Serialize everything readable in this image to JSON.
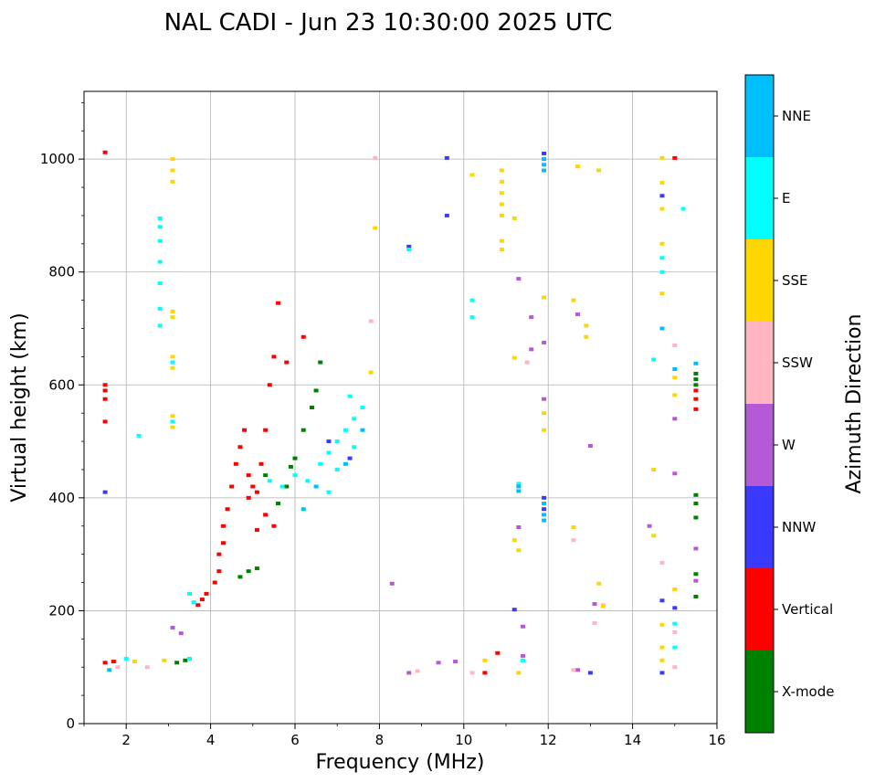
{
  "chart_data": {
    "type": "scatter",
    "title": "NAL CADI - Jun 23 10:30:00 2025 UTC",
    "xlabel": "Frequency (MHz)",
    "ylabel": "Virtual height (km)",
    "xlim": [
      1.0,
      16.0
    ],
    "ylim": [
      0,
      1120
    ],
    "x_ticks": [
      2,
      4,
      6,
      8,
      10,
      12,
      14,
      16
    ],
    "y_ticks": [
      0,
      200,
      400,
      600,
      800,
      1000
    ],
    "grid": true,
    "colorbar": {
      "title": "Azimuth Direction",
      "position": "right",
      "categories": [
        {
          "label": "X-mode",
          "color": "#008000"
        },
        {
          "label": "Vertical",
          "color": "#ff0000"
        },
        {
          "label": "NNW",
          "color": "#3a3aff"
        },
        {
          "label": "W",
          "color": "#b45ad6"
        },
        {
          "label": "SSW",
          "color": "#ffb6c1"
        },
        {
          "label": "SSE",
          "color": "#ffd700"
        },
        {
          "label": "E",
          "color": "#00ffff"
        },
        {
          "label": "NNE",
          "color": "#00bfff"
        }
      ]
    },
    "series": [
      {
        "name": "X-mode",
        "color": "#008000",
        "points": [
          [
            4.7,
            260
          ],
          [
            4.9,
            270
          ],
          [
            5.1,
            275
          ],
          [
            5.6,
            390
          ],
          [
            5.8,
            420
          ],
          [
            6.0,
            470
          ],
          [
            6.2,
            520
          ],
          [
            6.4,
            560
          ],
          [
            6.5,
            590
          ],
          [
            6.6,
            640
          ],
          [
            15.5,
            620
          ],
          [
            15.5,
            610
          ],
          [
            15.5,
            600
          ],
          [
            15.5,
            405
          ],
          [
            15.5,
            390
          ],
          [
            15.5,
            365
          ],
          [
            15.5,
            265
          ],
          [
            15.5,
            225
          ],
          [
            3.2,
            108
          ],
          [
            3.4,
            112
          ],
          [
            5.3,
            440
          ],
          [
            5.9,
            455
          ]
        ]
      },
      {
        "name": "Vertical",
        "color": "#ff0000",
        "points": [
          [
            1.5,
            1012
          ],
          [
            1.5,
            600
          ],
          [
            1.5,
            590
          ],
          [
            1.5,
            575
          ],
          [
            1.5,
            535
          ],
          [
            3.7,
            210
          ],
          [
            3.8,
            220
          ],
          [
            3.9,
            230
          ],
          [
            4.1,
            250
          ],
          [
            4.2,
            270
          ],
          [
            4.2,
            300
          ],
          [
            4.3,
            320
          ],
          [
            4.3,
            350
          ],
          [
            4.4,
            380
          ],
          [
            4.5,
            420
          ],
          [
            4.6,
            460
          ],
          [
            4.7,
            490
          ],
          [
            4.8,
            520
          ],
          [
            4.9,
            440
          ],
          [
            5.0,
            420
          ],
          [
            5.1,
            410
          ],
          [
            5.2,
            460
          ],
          [
            5.3,
            520
          ],
          [
            5.4,
            600
          ],
          [
            5.5,
            650
          ],
          [
            5.6,
            745
          ],
          [
            5.8,
            640
          ],
          [
            6.2,
            685
          ],
          [
            5.1,
            343
          ],
          [
            5.5,
            350
          ],
          [
            15.0,
            1002
          ],
          [
            15.5,
            590
          ],
          [
            15.5,
            575
          ],
          [
            15.5,
            557
          ],
          [
            1.5,
            108
          ],
          [
            1.7,
            110
          ],
          [
            10.5,
            90
          ],
          [
            10.8,
            125
          ],
          [
            5.3,
            370
          ],
          [
            4.9,
            400
          ]
        ]
      },
      {
        "name": "NNW",
        "color": "#3a3aff",
        "points": [
          [
            1.5,
            410
          ],
          [
            8.7,
            845
          ],
          [
            9.6,
            1002
          ],
          [
            9.6,
            900
          ],
          [
            11.9,
            1010
          ],
          [
            11.9,
            400
          ],
          [
            11.9,
            380
          ],
          [
            14.7,
            935
          ],
          [
            14.7,
            218
          ],
          [
            14.7,
            90
          ],
          [
            13.0,
            90
          ],
          [
            15.0,
            205
          ],
          [
            11.2,
            202
          ],
          [
            6.8,
            500
          ],
          [
            7.3,
            470
          ]
        ]
      },
      {
        "name": "W",
        "color": "#b45ad6",
        "points": [
          [
            8.3,
            248
          ],
          [
            8.7,
            90
          ],
          [
            9.4,
            108
          ],
          [
            9.8,
            110
          ],
          [
            11.4,
            120
          ],
          [
            11.4,
            172
          ],
          [
            11.3,
            348
          ],
          [
            11.6,
            720
          ],
          [
            11.6,
            663
          ],
          [
            11.3,
            788
          ],
          [
            11.9,
            675
          ],
          [
            11.9,
            575
          ],
          [
            12.7,
            725
          ],
          [
            13.0,
            492
          ],
          [
            13.1,
            212
          ],
          [
            14.4,
            350
          ],
          [
            15.0,
            443
          ],
          [
            15.0,
            540
          ],
          [
            15.5,
            310
          ],
          [
            15.5,
            253
          ],
          [
            12.7,
            95
          ],
          [
            3.1,
            170
          ],
          [
            3.3,
            160
          ]
        ]
      },
      {
        "name": "SSW",
        "color": "#ffb6c1",
        "points": [
          [
            7.9,
            1002
          ],
          [
            7.8,
            713
          ],
          [
            8.9,
            93
          ],
          [
            10.2,
            90
          ],
          [
            12.6,
            95
          ],
          [
            12.6,
            325
          ],
          [
            13.1,
            178
          ],
          [
            13.3,
            210
          ],
          [
            14.7,
            285
          ],
          [
            15.0,
            670
          ],
          [
            15.0,
            162
          ],
          [
            15.0,
            100
          ],
          [
            11.5,
            640
          ],
          [
            1.8,
            100
          ],
          [
            2.5,
            100
          ]
        ]
      },
      {
        "name": "SSE",
        "color": "#ffd700",
        "points": [
          [
            3.1,
            1000
          ],
          [
            3.1,
            980
          ],
          [
            3.1,
            960
          ],
          [
            3.1,
            730
          ],
          [
            3.1,
            720
          ],
          [
            3.1,
            650
          ],
          [
            3.1,
            630
          ],
          [
            3.1,
            545
          ],
          [
            3.1,
            525
          ],
          [
            7.9,
            878
          ],
          [
            7.8,
            622
          ],
          [
            10.2,
            972
          ],
          [
            10.9,
            980
          ],
          [
            10.9,
            960
          ],
          [
            10.9,
            940
          ],
          [
            10.9,
            920
          ],
          [
            10.9,
            900
          ],
          [
            10.9,
            855
          ],
          [
            10.9,
            840
          ],
          [
            11.2,
            895
          ],
          [
            11.2,
            648
          ],
          [
            11.2,
            325
          ],
          [
            11.3,
            307
          ],
          [
            11.9,
            755
          ],
          [
            11.9,
            550
          ],
          [
            11.9,
            520
          ],
          [
            12.7,
            987
          ],
          [
            12.6,
            750
          ],
          [
            12.9,
            705
          ],
          [
            12.9,
            685
          ],
          [
            12.6,
            348
          ],
          [
            13.2,
            980
          ],
          [
            13.2,
            248
          ],
          [
            13.3,
            208
          ],
          [
            14.5,
            450
          ],
          [
            14.5,
            333
          ],
          [
            14.7,
            1002
          ],
          [
            14.7,
            958
          ],
          [
            14.7,
            912
          ],
          [
            14.7,
            850
          ],
          [
            14.7,
            762
          ],
          [
            14.7,
            175
          ],
          [
            14.7,
            135
          ],
          [
            14.7,
            112
          ],
          [
            15.0,
            613
          ],
          [
            15.0,
            582
          ],
          [
            15.0,
            238
          ],
          [
            10.5,
            112
          ],
          [
            11.3,
            90
          ],
          [
            2.2,
            110
          ],
          [
            2.9,
            112
          ]
        ]
      },
      {
        "name": "E",
        "color": "#00ffff",
        "points": [
          [
            2.8,
            895
          ],
          [
            2.8,
            880
          ],
          [
            2.8,
            855
          ],
          [
            2.8,
            818
          ],
          [
            2.8,
            780
          ],
          [
            2.8,
            735
          ],
          [
            2.8,
            705
          ],
          [
            3.1,
            640
          ],
          [
            3.1,
            535
          ],
          [
            2.3,
            510
          ],
          [
            3.5,
            230
          ],
          [
            3.6,
            215
          ],
          [
            5.4,
            430
          ],
          [
            5.7,
            420
          ],
          [
            6.0,
            440
          ],
          [
            6.3,
            430
          ],
          [
            6.6,
            460
          ],
          [
            6.8,
            480
          ],
          [
            7.0,
            500
          ],
          [
            7.2,
            520
          ],
          [
            7.4,
            540
          ],
          [
            7.6,
            560
          ],
          [
            7.4,
            490
          ],
          [
            7.0,
            450
          ],
          [
            6.8,
            410
          ],
          [
            7.3,
            580
          ],
          [
            10.2,
            720
          ],
          [
            10.2,
            750
          ],
          [
            11.3,
            425
          ],
          [
            11.4,
            112
          ],
          [
            14.5,
            645
          ],
          [
            14.7,
            800
          ],
          [
            14.7,
            825
          ],
          [
            15.2,
            912
          ],
          [
            15.0,
            177
          ],
          [
            15.0,
            135
          ],
          [
            8.7,
            840
          ],
          [
            2.0,
            115
          ],
          [
            3.5,
            115
          ]
        ]
      },
      {
        "name": "NNE",
        "color": "#00bfff",
        "points": [
          [
            11.9,
            1000
          ],
          [
            11.9,
            990
          ],
          [
            11.9,
            980
          ],
          [
            11.9,
            390
          ],
          [
            11.9,
            370
          ],
          [
            11.9,
            360
          ],
          [
            11.3,
            420
          ],
          [
            11.3,
            412
          ],
          [
            14.7,
            700
          ],
          [
            15.5,
            638
          ],
          [
            15.0,
            628
          ],
          [
            7.6,
            520
          ],
          [
            7.2,
            460
          ],
          [
            6.5,
            420
          ],
          [
            6.2,
            380
          ],
          [
            1.6,
            95
          ]
        ]
      }
    ]
  }
}
